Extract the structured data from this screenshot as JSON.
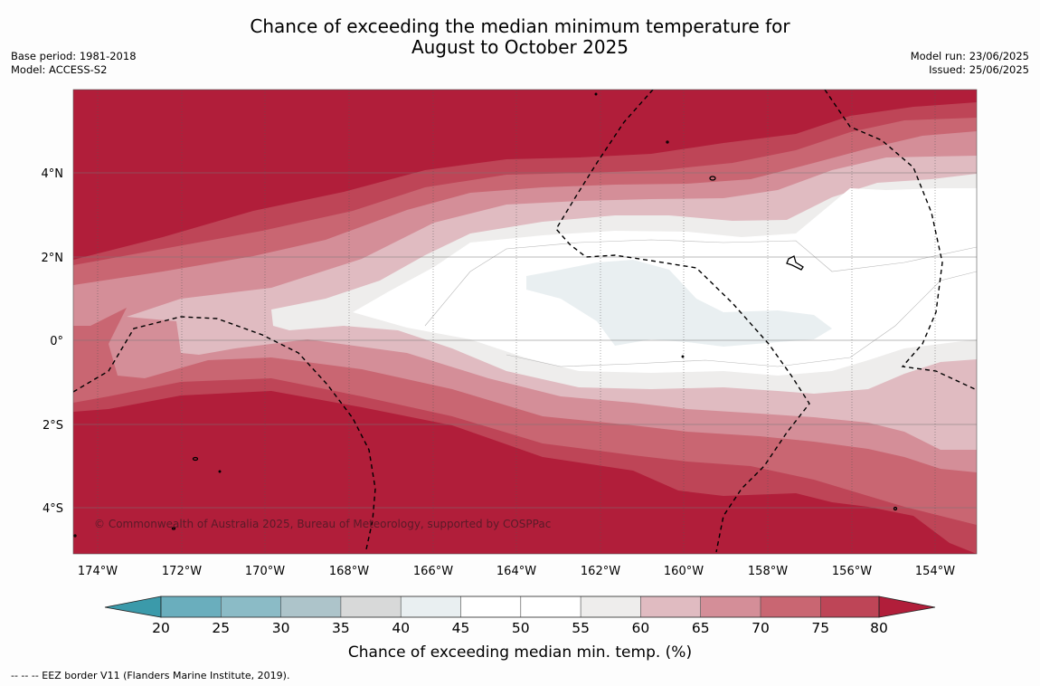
{
  "header": {
    "title_line1": "Chance of exceeding the median minimum temperature for",
    "title_line2": "August to October 2025",
    "base_period": "Base period: 1981-2018",
    "model": "Model: ACCESS-S2",
    "model_run": "Model run: 23/06/2025",
    "issued": "Issued: 25/06/2025"
  },
  "map": {
    "latitude_labels": [
      "4°N",
      "2°N",
      "0°",
      "2°S",
      "4°S"
    ],
    "longitude_labels": [
      "174°W",
      "172°W",
      "170°W",
      "168°W",
      "166°W",
      "164°W",
      "162°W",
      "160°W",
      "158°W",
      "156°W",
      "154°W"
    ],
    "copyright": "© Commonwealth of Australia 2025, Bureau of Meteorology, supported by COSPPac",
    "colors": {
      "below_20": "#3b9aaa",
      "20_25": "#6aaebd",
      "25_30": "#8bbbc6",
      "30_35": "#adc4ca",
      "35_40": "#d8d9d9",
      "40_45": "#e9eff1",
      "45_50": "#ffffff",
      "50_55": "#ffffff",
      "55_60": "#eeedec",
      "60_65": "#e0bbc1",
      "65_70": "#d48e98",
      "70_75": "#c96672",
      "75_80": "#be4557",
      "above_80": "#b11e3a"
    }
  },
  "colorbar": {
    "ticks": [
      "20",
      "25",
      "30",
      "35",
      "40",
      "45",
      "50",
      "55",
      "60",
      "65",
      "70",
      "75",
      "80"
    ],
    "label": "Chance of exceeding median min. temp. (%)"
  },
  "legend": {
    "eez": "--  --  -- EEZ border V11 (Flanders Marine Institute, 2019)."
  }
}
